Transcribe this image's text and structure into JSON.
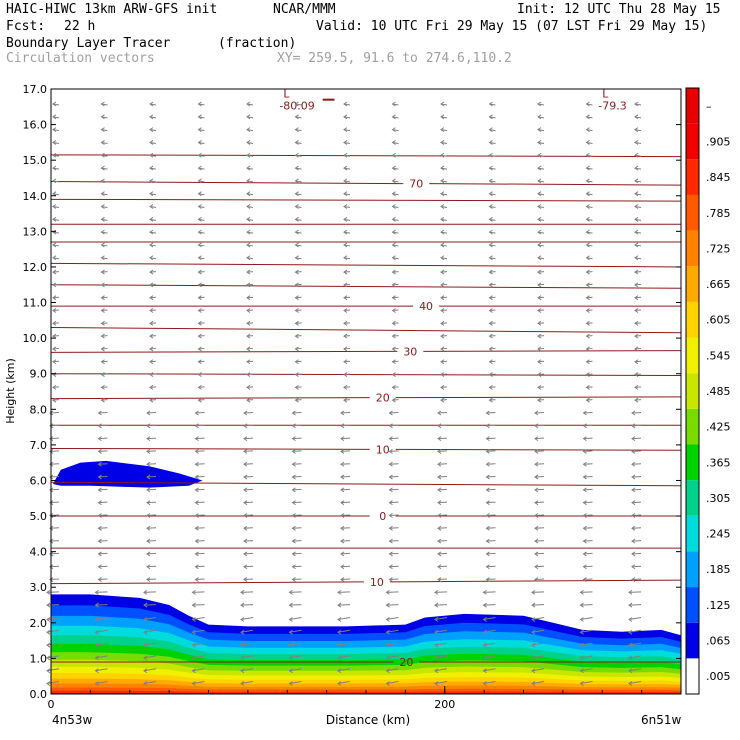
{
  "header": {
    "model": "HAIC-HIWC 13km ARW-GFS init",
    "org": "NCAR/MMM",
    "init": "Init: 12 UTC Thu 28 May 15",
    "fcst_label": "Fcst:",
    "fcst_value": "22 h",
    "valid": "Valid: 10 UTC Fri 29 May 15 (07 LST Fri 29 May 15)",
    "field": "Boundary Layer Tracer",
    "field_units": "(fraction)",
    "vectors": "Circulation vectors",
    "xy": "XY= 259.5, 91.6 to 274.6,110.2"
  },
  "chart_data": {
    "type": "heatmap",
    "ylabel": "Height (km)",
    "xlabel": "Distance (km)",
    "x_left_label": "4n53w",
    "x_right_label": "6n51w",
    "x_ticks": [
      {
        "value": 0,
        "label": "0"
      },
      {
        "value": 200,
        "label": "200"
      }
    ],
    "xlim": [
      0,
      320
    ],
    "ylim": [
      0,
      17
    ],
    "y_ticks": [
      "0.0",
      "1.0",
      "2.0",
      "3.0",
      "4.0",
      "5.0",
      "6.0",
      "7.0",
      "8.0",
      "9.0",
      "10.0",
      "11.0",
      "12.0",
      "13.0",
      "14.0",
      "15.0",
      "16.0",
      "17.0"
    ],
    "colorbar_labels": [
      ".005",
      ".065",
      ".125",
      ".185",
      ".245",
      ".305",
      ".365",
      ".425",
      ".485",
      ".545",
      ".605",
      ".665",
      ".725",
      ".785",
      ".845",
      ".905",
      "–"
    ],
    "colorbar_colors": [
      "#ffffff",
      "#0000e6",
      "#0050ff",
      "#00a0ff",
      "#00dcdc",
      "#00d28c",
      "#00d200",
      "#78dc00",
      "#c8e600",
      "#f0f000",
      "#ffd200",
      "#ffaa00",
      "#ff8200",
      "#ff5a00",
      "#ff2800",
      "#f00000",
      "#e60000"
    ],
    "plume_color_levels": [
      "#e60000",
      "#ff2800",
      "#ff5a00",
      "#ff8200",
      "#ffaa00",
      "#ffd200",
      "#f0f000",
      "#c8e600",
      "#78dc00",
      "#00d200",
      "#00d28c",
      "#00dcdc",
      "#00a0ff",
      "#0050ff",
      "#0000e6"
    ],
    "plume_top_km": [
      [
        0,
        2.8
      ],
      [
        20,
        2.8
      ],
      [
        45,
        2.7
      ],
      [
        60,
        2.5
      ],
      [
        70,
        2.2
      ],
      [
        80,
        1.95
      ],
      [
        100,
        1.9
      ],
      [
        150,
        1.9
      ],
      [
        180,
        1.95
      ],
      [
        190,
        2.15
      ],
      [
        210,
        2.25
      ],
      [
        240,
        2.2
      ],
      [
        255,
        2.0
      ],
      [
        270,
        1.8
      ],
      [
        290,
        1.75
      ],
      [
        310,
        1.8
      ],
      [
        320,
        1.65
      ]
    ],
    "upper_patch_km": [
      [
        1,
        5.9
      ],
      [
        5,
        6.3
      ],
      [
        15,
        6.5
      ],
      [
        28,
        6.55
      ],
      [
        50,
        6.4
      ],
      [
        65,
        6.2
      ],
      [
        77,
        6.0
      ],
      [
        70,
        5.85
      ],
      [
        50,
        5.8
      ],
      [
        20,
        5.85
      ],
      [
        5,
        5.85
      ],
      [
        1,
        5.9
      ]
    ],
    "contour_color": "#8b1a1a",
    "contours": [
      {
        "y": [
          0.9,
          0.9
        ],
        "label": "20",
        "label_x": 180
      },
      {
        "y": [
          3.1,
          3.2
        ],
        "label": "10",
        "label_x": 165
      },
      {
        "y": [
          4.1,
          4.1
        ],
        "label": "",
        "label_x": null
      },
      {
        "y": [
          5.0,
          5.0
        ],
        "label": "0",
        "label_x": 168
      },
      {
        "y": [
          5.95,
          5.85
        ],
        "label": "",
        "label_x": null
      },
      {
        "y": [
          6.9,
          6.85
        ],
        "label": "10",
        "label_x": 168
      },
      {
        "y": [
          7.55,
          7.55
        ],
        "label": "",
        "label_x": null
      },
      {
        "y": [
          8.3,
          8.35
        ],
        "label": "20",
        "label_x": 168
      },
      {
        "y": [
          9.0,
          8.95
        ],
        "label": "",
        "label_x": null
      },
      {
        "y": [
          9.6,
          9.65
        ],
        "label": "30",
        "label_x": 182
      },
      {
        "y": [
          10.3,
          10.15
        ],
        "label": "",
        "label_x": null
      },
      {
        "y": [
          10.9,
          10.9
        ],
        "label": "40",
        "label_x": 190
      },
      {
        "y": [
          11.5,
          11.4
        ],
        "label": "",
        "label_x": null
      },
      {
        "y": [
          12.1,
          12.0
        ],
        "label": "",
        "label_x": null
      },
      {
        "y": [
          12.7,
          12.7
        ],
        "label": "",
        "label_x": null
      },
      {
        "y": [
          13.2,
          13.2
        ],
        "label": "",
        "label_x": null
      },
      {
        "y": [
          13.9,
          13.85
        ],
        "label": "",
        "label_x": null
      },
      {
        "y": [
          14.4,
          14.3
        ],
        "label": "70",
        "label_x": 185
      },
      {
        "y": [
          15.15,
          15.1
        ],
        "label": "",
        "label_x": null
      }
    ],
    "lows": [
      {
        "x": 118,
        "y": 16.65,
        "value": "-80.09"
      },
      {
        "x": 280,
        "y": 16.65,
        "value": "-79.3"
      }
    ],
    "top_dash_x": [
      138,
      144
    ]
  }
}
